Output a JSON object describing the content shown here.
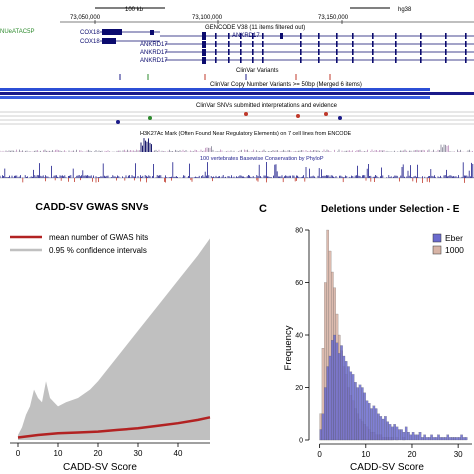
{
  "genome_browser": {
    "scale_label": "100 kb",
    "assembly": "hg38",
    "coords": [
      "73,050,000",
      "73,100,000",
      "73,150,000"
    ],
    "left_feature": "NUeATAC5P",
    "gencode_label": "GENCODE V38 (11 items filtered out)",
    "genes": [
      "COX18",
      "COX18",
      "ANKRD17",
      "ANKRD17",
      "ANKRD17",
      "ANKRD17"
    ],
    "tracks": {
      "clinvar_variants": "ClinVar Variants",
      "clinvar_cnv": "ClinVar Copy Number Variants >= 50bp (Merged 6 items)",
      "clinvar_snvs": "ClinVar SNVs submitted interpretations and evidence",
      "h3k27ac": "H3K27Ac Mark (Often Found Near Regulatory Elements) on 7 cell lines from ENCODE",
      "phylop": "100 vertebrates Basewise Conservation by PhyloP"
    }
  },
  "panel_c_letter": "C",
  "chart_data": [
    {
      "type": "line",
      "title": "CADD-SV GWAS SNVs",
      "xlabel": "CADD-SV Score",
      "ylabel": "",
      "xlim": [
        -2,
        48
      ],
      "xticks": [
        0,
        10,
        20,
        30,
        40
      ],
      "series": [
        {
          "name": "mean number of GWAS hits",
          "color": "#b22222",
          "x": [
            0,
            5,
            10,
            15,
            20,
            25,
            30,
            35,
            40,
            45,
            48
          ],
          "y": [
            0.3,
            0.6,
            0.8,
            0.9,
            1.0,
            1.2,
            1.4,
            1.7,
            2.0,
            2.4,
            2.7
          ]
        },
        {
          "name": "0.95 % confidence intervals",
          "color": "#c0c0c0",
          "x": [
            0,
            1,
            2,
            3,
            4,
            5,
            6,
            7,
            8,
            9,
            10,
            12,
            15,
            18,
            20,
            25,
            30,
            35,
            40,
            45,
            48
          ],
          "y": [
            0.6,
            1.5,
            3.0,
            4.0,
            6.0,
            5.0,
            4.5,
            7.0,
            5.0,
            4.5,
            4.0,
            4.5,
            5.0,
            6.0,
            7.0,
            10.0,
            13.0,
            16.0,
            19.0,
            22.0,
            24.0
          ]
        }
      ],
      "legend_position": "top-left"
    },
    {
      "type": "bar",
      "title": "Deletions under Selection - E",
      "xlabel": "CADD-SV Score",
      "ylabel": "Frequency",
      "xlim": [
        -1,
        33
      ],
      "ylim": [
        0,
        80
      ],
      "xticks": [
        0,
        10,
        20,
        30
      ],
      "yticks": [
        0,
        20,
        40,
        60,
        80
      ],
      "bin_width": 0.5,
      "legend_position": "top-right",
      "series": [
        {
          "name": "Eber",
          "color": "#6a6acd",
          "bin_start": 0,
          "values": [
            4,
            10,
            20,
            28,
            32,
            38,
            40,
            37,
            33,
            36,
            32,
            30,
            28,
            26,
            25,
            22,
            20,
            21,
            20,
            18,
            15,
            14,
            12,
            13,
            12,
            10,
            9,
            8,
            9,
            7,
            6,
            5,
            6,
            5,
            4,
            4,
            3,
            5,
            3,
            2,
            3,
            2,
            2,
            3,
            1,
            2,
            1,
            1,
            2,
            1,
            1,
            2,
            1,
            1,
            1,
            2,
            1,
            1,
            1,
            1,
            1,
            2,
            1,
            1
          ]
        },
        {
          "name": "1000",
          "color": "#d8b4a6",
          "bin_start": 0,
          "values": [
            10,
            35,
            60,
            80,
            72,
            64,
            58,
            48,
            40,
            34,
            28,
            25,
            20,
            17,
            15,
            12,
            10,
            8,
            7,
            6,
            5,
            4,
            3,
            3,
            2,
            2,
            2,
            1,
            1,
            1,
            1,
            1,
            0,
            1,
            0,
            0,
            1,
            0,
            0,
            0,
            0,
            0,
            0,
            0,
            0,
            0,
            0,
            0,
            0,
            0,
            0,
            0,
            0,
            0,
            0,
            0,
            0,
            0,
            0,
            0,
            0,
            0,
            0,
            0
          ]
        }
      ]
    }
  ]
}
